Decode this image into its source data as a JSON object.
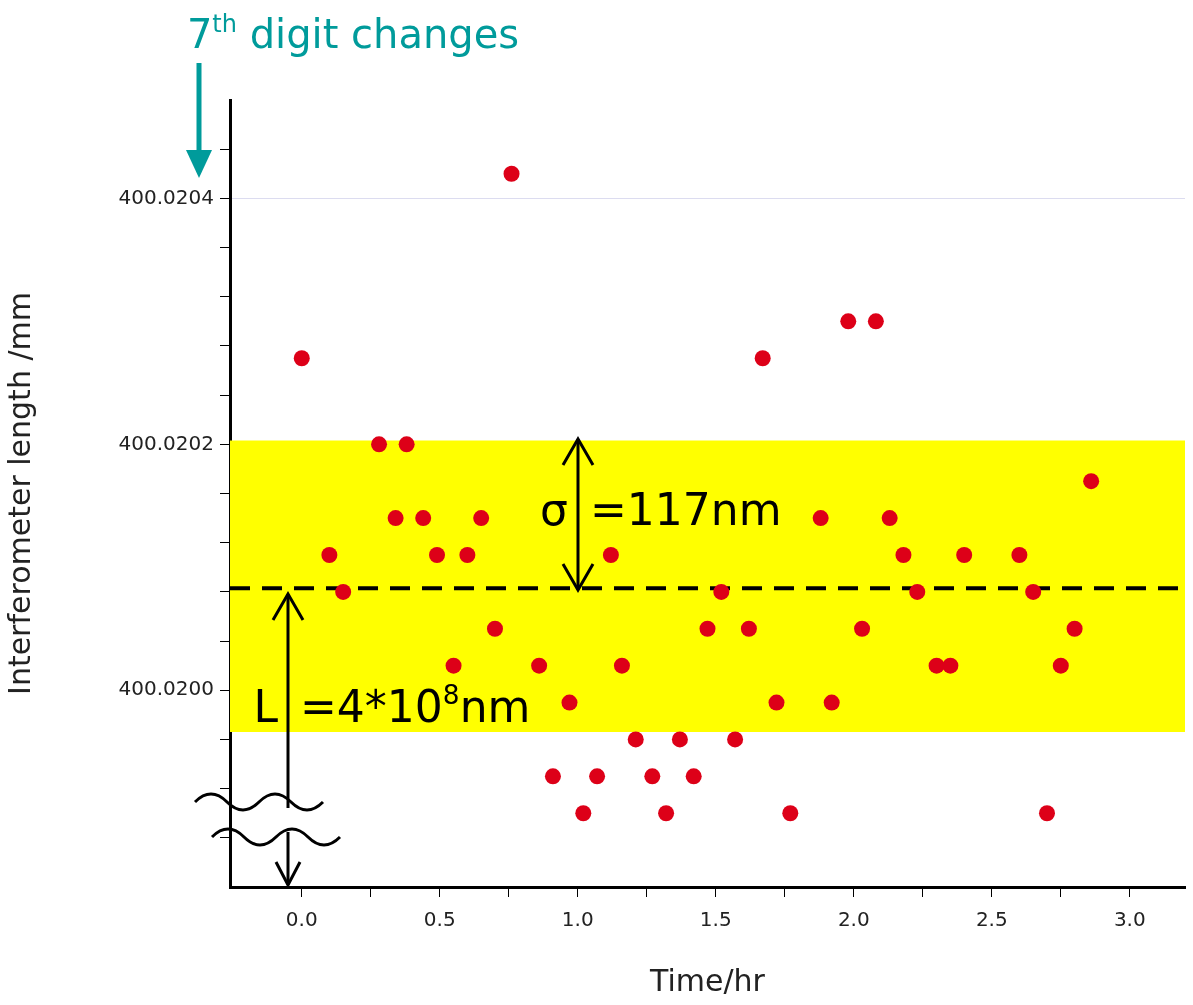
{
  "chart_data": {
    "type": "scatter",
    "xlabel": "Time/hr",
    "ylabel": "Interferometer length /mm",
    "annotations": [
      "7$^{th}$ digit changes",
      "σ =117nm",
      "L =4*10$^{8}$nm"
    ],
    "x": [
      0.0,
      0.1,
      0.15,
      0.28,
      0.34,
      0.38,
      0.44,
      0.49,
      0.55,
      0.6,
      0.65,
      0.7,
      0.76,
      0.86,
      0.91,
      0.97,
      1.02,
      1.07,
      1.12,
      1.16,
      1.21,
      1.27,
      1.32,
      1.37,
      1.42,
      1.47,
      1.52,
      1.57,
      1.62,
      1.67,
      1.72,
      1.77,
      1.88,
      1.92,
      1.98,
      2.03,
      2.08,
      2.13,
      2.18,
      2.23,
      2.3,
      2.35,
      2.4,
      2.6,
      2.65,
      2.7,
      2.75,
      2.8,
      2.86
    ],
    "series": [
      {
        "color": "#dd0018",
        "values": [
          400.02027,
          400.02011,
          400.02008,
          400.0202,
          400.02014,
          400.0202,
          400.02014,
          400.02011,
          400.02002,
          400.02011,
          400.02014,
          400.02005,
          400.02042,
          400.02002,
          400.01993,
          400.01999,
          400.0199,
          400.01993,
          400.02011,
          400.02002,
          400.01996,
          400.01993,
          400.0199,
          400.01996,
          400.01993,
          400.02005,
          400.02008,
          400.01996,
          400.02005,
          400.02027,
          400.01999,
          400.0199,
          400.02014,
          400.01999,
          400.0203,
          400.02005,
          400.0203,
          400.02014,
          400.02011,
          400.02008,
          400.02002,
          400.02002,
          400.02011,
          400.02011,
          400.02008,
          400.0199,
          400.02002,
          400.02005,
          400.02017
        ]
      }
    ],
    "xlim": [
      -0.26,
      3.2
    ],
    "xticks": [
      {
        "value": 0,
        "label": "0.0"
      },
      {
        "value": 0.25,
        "label": null
      },
      {
        "value": 0.5,
        "label": "0.5"
      },
      {
        "value": 0.75,
        "label": null
      },
      {
        "value": 1,
        "label": "1.0"
      },
      {
        "value": 1.25,
        "label": null
      },
      {
        "value": 1.5,
        "label": "1.5"
      },
      {
        "value": 1.75,
        "label": null
      },
      {
        "value": 2,
        "label": "2.0"
      },
      {
        "value": 2.25,
        "label": null
      },
      {
        "value": 2.5,
        "label": "2.5"
      },
      {
        "value": 2.75,
        "label": null
      },
      {
        "value": 3,
        "label": "3.0"
      }
    ],
    "ylim": [
      400.01984,
      400.02048
    ],
    "yticks": [
      {
        "value": 400.01988,
        "label": null
      },
      {
        "value": 400.01992,
        "label": null
      },
      {
        "value": 400.01996,
        "label": null
      },
      {
        "value": 400.02,
        "label": "400.0200"
      },
      {
        "value": 400.02004,
        "label": null
      },
      {
        "value": 400.02008,
        "label": null
      },
      {
        "value": 400.02012,
        "label": null
      },
      {
        "value": 400.02016,
        "label": null
      },
      {
        "value": 400.0202,
        "label": "400.0202"
      },
      {
        "value": 400.02024,
        "label": null
      },
      {
        "value": 400.02028,
        "label": null
      },
      {
        "value": 400.02032,
        "label": null
      },
      {
        "value": 400.02036,
        "label": null
      },
      {
        "value": 400.0204,
        "label": "400.0204"
      },
      {
        "value": 400.02044,
        "label": null
      }
    ],
    "ref_lines": [
      {
        "axis": "y",
        "value": 400.020083,
        "label": null,
        "color": "#000000",
        "line_style": "dashed"
      }
    ],
    "bands": [
      {
        "axis": "y",
        "from": 400.019966,
        "to": 400.020203,
        "label": null,
        "color": "#ffff00"
      }
    ],
    "grid": "y",
    "marker": "circle",
    "legend": false
  }
}
